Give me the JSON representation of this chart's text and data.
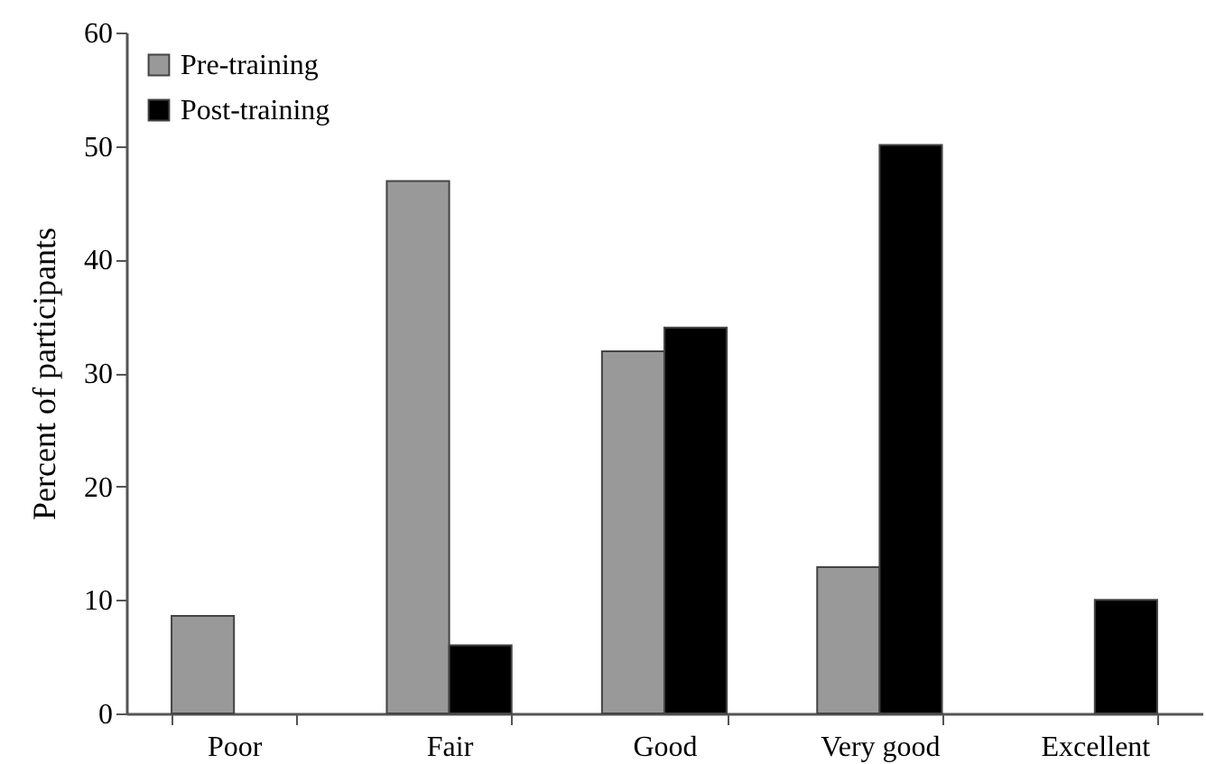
{
  "chart_data": {
    "type": "bar",
    "ylabel": "Percent of participants",
    "categories": [
      "Poor",
      "Fair",
      "Good",
      "Very good",
      "Excellent"
    ],
    "series": [
      {
        "name": "Pre-training",
        "color": "#999999",
        "values": [
          8.6,
          46.9,
          31.9,
          12.9,
          null
        ]
      },
      {
        "name": "Post-training",
        "color": "#000000",
        "values": [
          null,
          6.0,
          34.0,
          50.1,
          10.0
        ]
      }
    ],
    "ylim": [
      0,
      60
    ],
    "yticks": [
      0,
      10,
      20,
      30,
      40,
      50,
      60
    ],
    "grid": false,
    "legend": "top left"
  }
}
